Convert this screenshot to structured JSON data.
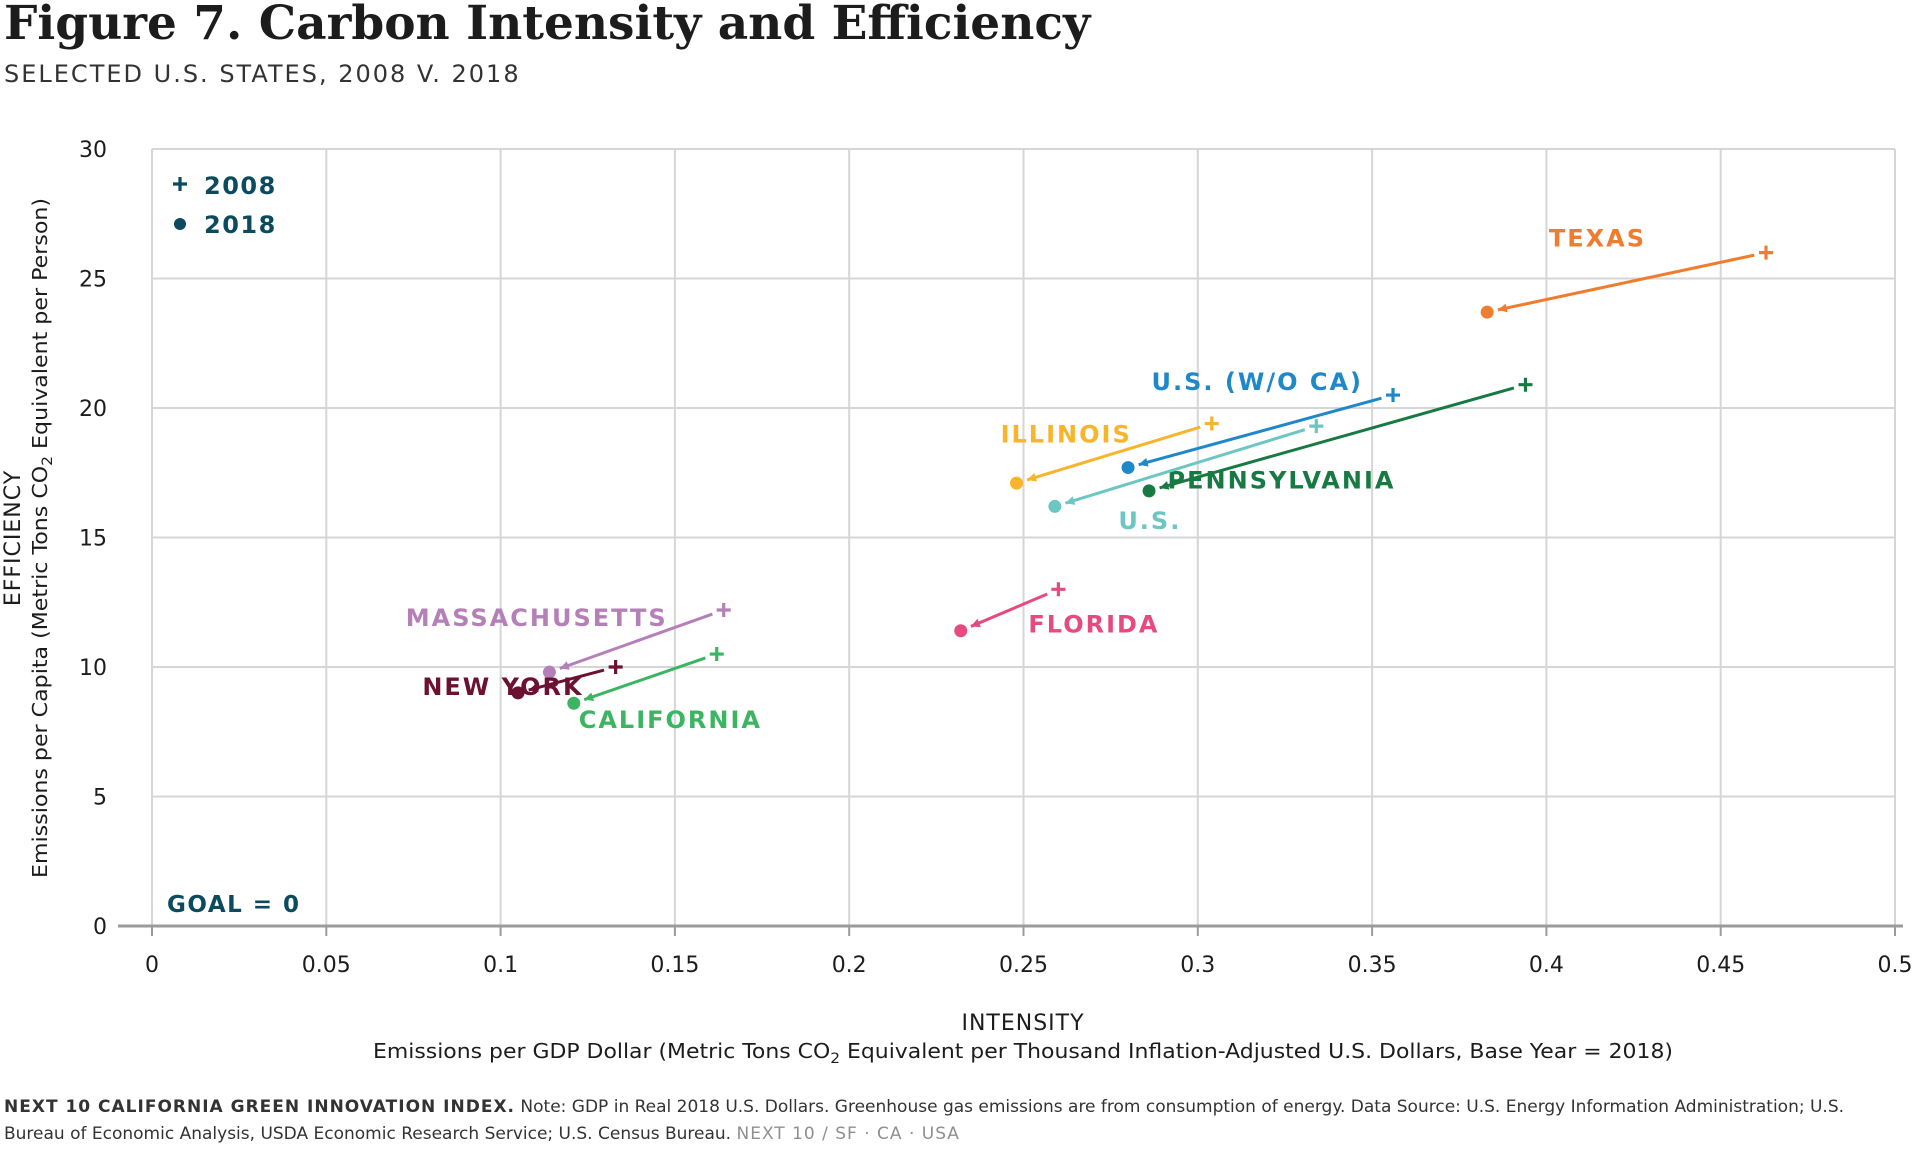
{
  "title": "Figure 7. Carbon Intensity and Efficiency",
  "subtitle": "SELECTED U.S. STATES, 2008 V. 2018",
  "footer": {
    "brand": "NEXT 10 CALIFORNIA GREEN INNOVATION INDEX.",
    "note": "Note: GDP in Real 2018 U.S. Dollars. Greenhouse gas emissions are from consumption of energy. Data Source: U.S. Energy Information Administration; U.S. Bureau of Economic Analysis, USDA Economic Research Service; U.S. Census Bureau.",
    "tagline": "NEXT 10 / SF · CA · USA"
  },
  "chart_data": {
    "type": "scatter",
    "xlabel": "INTENSITY",
    "xlabel_sub_before": "Emissions per GDP Dollar (Metric Tons CO",
    "xlabel_sub_subscript": "2",
    "xlabel_sub_after": " Equivalent per Thousand Inflation-Adjusted U.S. Dollars, Base Year = 2018)",
    "ylabel": "EFFICIENCY",
    "ylabel_sub_before": "Emissions per Capita (Metric Tons CO",
    "ylabel_sub_subscript": "2",
    "ylabel_sub_after": " Equivalent per Person)",
    "xlim": [
      0,
      0.5
    ],
    "ylim": [
      0,
      30
    ],
    "xticks": [
      0,
      0.05,
      0.1,
      0.15,
      0.2,
      0.25,
      0.3,
      0.35,
      0.4,
      0.45,
      0.5
    ],
    "xtick_labels": [
      "0",
      "0.05",
      "0.1",
      "0.15",
      "0.2",
      "0.25",
      "0.3",
      "0.35",
      "0.4",
      "0.45",
      "0.5"
    ],
    "yticks": [
      0,
      5,
      10,
      15,
      20,
      25,
      30
    ],
    "ytick_labels": [
      "0",
      "5",
      "10",
      "15",
      "20",
      "25",
      "30"
    ],
    "grid": true,
    "legend_position": "top-left",
    "legend": [
      {
        "marker": "+",
        "label": "2008"
      },
      {
        "marker": "●",
        "label": "2018"
      }
    ],
    "legend_color": "#0b4a5f",
    "annotation": "GOAL = 0",
    "series": [
      {
        "name": "TEXAS",
        "color": "#ef7d2f",
        "from": [
          0.463,
          26.0
        ],
        "to": [
          0.383,
          23.7
        ]
      },
      {
        "name": "U.S. (W/O CA)",
        "color": "#1f88c9",
        "from": [
          0.356,
          20.5
        ],
        "to": [
          0.28,
          17.7
        ]
      },
      {
        "name": "PENNSYLVANIA",
        "color": "#177a43",
        "from": [
          0.394,
          20.9
        ],
        "to": [
          0.286,
          16.8
        ]
      },
      {
        "name": "ILLINOIS",
        "color": "#f8b42b",
        "from": [
          0.304,
          19.4
        ],
        "to": [
          0.248,
          17.1
        ]
      },
      {
        "name": "U.S.",
        "color": "#6cc6c1",
        "from": [
          0.334,
          19.3
        ],
        "to": [
          0.259,
          16.2
        ]
      },
      {
        "name": "FLORIDA",
        "color": "#e64b80",
        "from": [
          0.26,
          13.0
        ],
        "to": [
          0.232,
          11.4
        ]
      },
      {
        "name": "MASSACHUSETTS",
        "color": "#b57fb8",
        "from": [
          0.164,
          12.2
        ],
        "to": [
          0.114,
          9.8
        ]
      },
      {
        "name": "NEW YORK",
        "color": "#6b1131",
        "from": [
          0.133,
          10.0
        ],
        "to": [
          0.105,
          9.0
        ]
      },
      {
        "name": "CALIFORNIA",
        "color": "#3cb562",
        "from": [
          0.162,
          10.5
        ],
        "to": [
          0.121,
          8.6
        ]
      }
    ]
  }
}
